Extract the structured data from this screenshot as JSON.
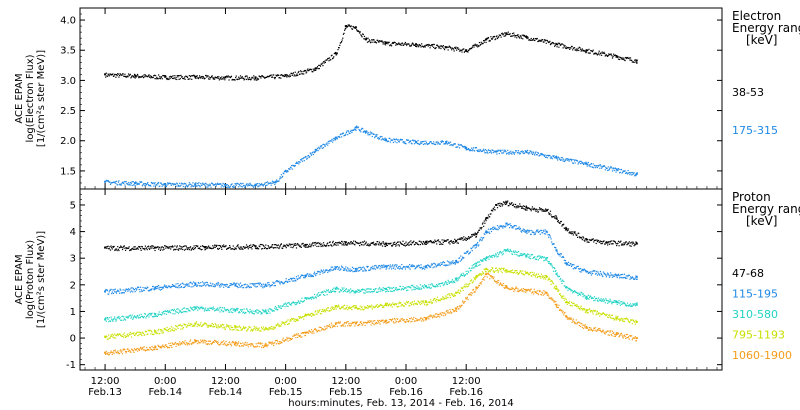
{
  "chart_data": [
    {
      "type": "scatter",
      "panel": "electron",
      "ylabel_lines": [
        "ACE EPAM",
        "log(Electron Flux)",
        "[1/(cm²s ster MeV)]"
      ],
      "ylim": [
        1.2,
        4.2
      ],
      "yticks": [
        1.5,
        2.0,
        2.5,
        3.0,
        3.5,
        4.0
      ],
      "ytick_labels": [
        "1.5",
        "2.0",
        "2.5",
        "3.0",
        "3.5",
        "4.0"
      ],
      "legend_title_lines": [
        "Electron",
        "Energy ranges",
        "[keV]"
      ],
      "series": [
        {
          "name": "38-53",
          "color": "#000000",
          "points": [
            [
              0,
              3.1
            ],
            [
              6,
              3.08
            ],
            [
              12,
              3.06
            ],
            [
              18,
              3.06
            ],
            [
              24,
              3.05
            ],
            [
              30,
              3.05
            ],
            [
              36,
              3.08
            ],
            [
              42,
              3.2
            ],
            [
              46,
              3.45
            ],
            [
              48,
              3.9
            ],
            [
              50,
              3.88
            ],
            [
              52,
              3.68
            ],
            [
              56,
              3.62
            ],
            [
              62,
              3.6
            ],
            [
              68,
              3.55
            ],
            [
              72,
              3.5
            ],
            [
              76,
              3.68
            ],
            [
              80,
              3.78
            ],
            [
              84,
              3.72
            ],
            [
              90,
              3.6
            ],
            [
              96,
              3.5
            ],
            [
              102,
              3.4
            ],
            [
              106,
              3.33
            ]
          ]
        },
        {
          "name": "175-315",
          "color": "#1e88e5",
          "points": [
            [
              0,
              1.32
            ],
            [
              6,
              1.3
            ],
            [
              12,
              1.28
            ],
            [
              18,
              1.28
            ],
            [
              24,
              1.27
            ],
            [
              30,
              1.27
            ],
            [
              34,
              1.32
            ],
            [
              36,
              1.5
            ],
            [
              42,
              1.85
            ],
            [
              46,
              2.05
            ],
            [
              50,
              2.22
            ],
            [
              52,
              2.15
            ],
            [
              56,
              2.02
            ],
            [
              62,
              1.98
            ],
            [
              68,
              1.98
            ],
            [
              72,
              1.88
            ],
            [
              78,
              1.82
            ],
            [
              84,
              1.82
            ],
            [
              90,
              1.72
            ],
            [
              96,
              1.62
            ],
            [
              102,
              1.52
            ],
            [
              106,
              1.45
            ]
          ]
        }
      ]
    },
    {
      "type": "scatter",
      "panel": "proton",
      "ylabel_lines": [
        "ACE EPAM",
        "log(Proton Flux)",
        "[1/(cm²s ster MeV)]"
      ],
      "ylim": [
        -1.2,
        5.6
      ],
      "yticks": [
        -1,
        0,
        1,
        2,
        3,
        4,
        5
      ],
      "ytick_labels": [
        "-1",
        "0",
        "1",
        "2",
        "3",
        "4",
        "5"
      ],
      "legend_title_lines": [
        "Proton",
        "Energy ranges",
        "[keV]"
      ],
      "series": [
        {
          "name": "47-68",
          "color": "#000000",
          "points": [
            [
              0,
              3.4
            ],
            [
              10,
              3.4
            ],
            [
              20,
              3.42
            ],
            [
              30,
              3.45
            ],
            [
              40,
              3.5
            ],
            [
              48,
              3.6
            ],
            [
              56,
              3.55
            ],
            [
              64,
              3.6
            ],
            [
              70,
              3.65
            ],
            [
              74,
              3.9
            ],
            [
              76,
              4.5
            ],
            [
              78,
              5.0
            ],
            [
              80,
              5.1
            ],
            [
              84,
              4.9
            ],
            [
              88,
              4.8
            ],
            [
              90,
              4.5
            ],
            [
              92,
              4.1
            ],
            [
              96,
              3.7
            ],
            [
              100,
              3.6
            ],
            [
              106,
              3.55
            ]
          ]
        },
        {
          "name": "115-195",
          "color": "#1e88e5",
          "points": [
            [
              0,
              1.75
            ],
            [
              10,
              1.9
            ],
            [
              18,
              2.05
            ],
            [
              26,
              2.0
            ],
            [
              32,
              2.0
            ],
            [
              40,
              2.35
            ],
            [
              46,
              2.65
            ],
            [
              50,
              2.6
            ],
            [
              56,
              2.7
            ],
            [
              64,
              2.7
            ],
            [
              70,
              2.9
            ],
            [
              74,
              3.5
            ],
            [
              76,
              4.0
            ],
            [
              80,
              4.3
            ],
            [
              84,
              4.0
            ],
            [
              88,
              4.0
            ],
            [
              90,
              3.3
            ],
            [
              92,
              2.8
            ],
            [
              96,
              2.5
            ],
            [
              102,
              2.35
            ],
            [
              106,
              2.3
            ]
          ]
        },
        {
          "name": "310-580",
          "color": "#22d3c5",
          "points": [
            [
              0,
              0.7
            ],
            [
              10,
              0.9
            ],
            [
              18,
              1.15
            ],
            [
              26,
              1.05
            ],
            [
              32,
              1.0
            ],
            [
              40,
              1.5
            ],
            [
              46,
              1.85
            ],
            [
              50,
              1.75
            ],
            [
              56,
              1.85
            ],
            [
              64,
              1.95
            ],
            [
              70,
              2.2
            ],
            [
              74,
              2.8
            ],
            [
              76,
              3.0
            ],
            [
              80,
              3.3
            ],
            [
              84,
              3.1
            ],
            [
              88,
              3.0
            ],
            [
              90,
              2.4
            ],
            [
              92,
              1.9
            ],
            [
              96,
              1.55
            ],
            [
              102,
              1.35
            ],
            [
              106,
              1.25
            ]
          ]
        },
        {
          "name": "795-1193",
          "color": "#c8e000",
          "points": [
            [
              0,
              0.05
            ],
            [
              10,
              0.25
            ],
            [
              18,
              0.55
            ],
            [
              26,
              0.4
            ],
            [
              32,
              0.35
            ],
            [
              40,
              0.85
            ],
            [
              46,
              1.2
            ],
            [
              50,
              1.15
            ],
            [
              56,
              1.25
            ],
            [
              64,
              1.35
            ],
            [
              70,
              1.7
            ],
            [
              74,
              2.3
            ],
            [
              76,
              2.6
            ],
            [
              80,
              2.55
            ],
            [
              84,
              2.45
            ],
            [
              88,
              2.3
            ],
            [
              90,
              1.85
            ],
            [
              92,
              1.35
            ],
            [
              96,
              1.05
            ],
            [
              102,
              0.75
            ],
            [
              106,
              0.6
            ]
          ]
        },
        {
          "name": "1060-1900",
          "color": "#f39c1a",
          "points": [
            [
              0,
              -0.55
            ],
            [
              10,
              -0.35
            ],
            [
              18,
              -0.1
            ],
            [
              26,
              -0.2
            ],
            [
              32,
              -0.25
            ],
            [
              40,
              0.2
            ],
            [
              46,
              0.55
            ],
            [
              50,
              0.55
            ],
            [
              56,
              0.65
            ],
            [
              64,
              0.75
            ],
            [
              70,
              1.1
            ],
            [
              74,
              1.9
            ],
            [
              76,
              2.4
            ],
            [
              80,
              1.9
            ],
            [
              84,
              1.8
            ],
            [
              88,
              1.7
            ],
            [
              90,
              1.25
            ],
            [
              92,
              0.8
            ],
            [
              96,
              0.4
            ],
            [
              102,
              0.15
            ],
            [
              106,
              0.0
            ]
          ]
        }
      ]
    }
  ],
  "x_axis": {
    "xlim": [
      -5,
      123
    ],
    "ticks": [
      {
        "hours": 0,
        "time": "12:00",
        "date": "Feb.13"
      },
      {
        "hours": 12,
        "time": "0:00",
        "date": "Feb.14"
      },
      {
        "hours": 24,
        "time": "12:00",
        "date": "Feb.14"
      },
      {
        "hours": 36,
        "time": "0:00",
        "date": "Feb.15"
      },
      {
        "hours": 48,
        "time": "12:00",
        "date": "Feb.15"
      },
      {
        "hours": 60,
        "time": "0:00",
        "date": "Feb.16"
      },
      {
        "hours": 72,
        "time": "12:00",
        "date": "Feb.16"
      }
    ],
    "xlabel": "hours:minutes, Feb. 13, 2014 - Feb. 16, 2014"
  }
}
